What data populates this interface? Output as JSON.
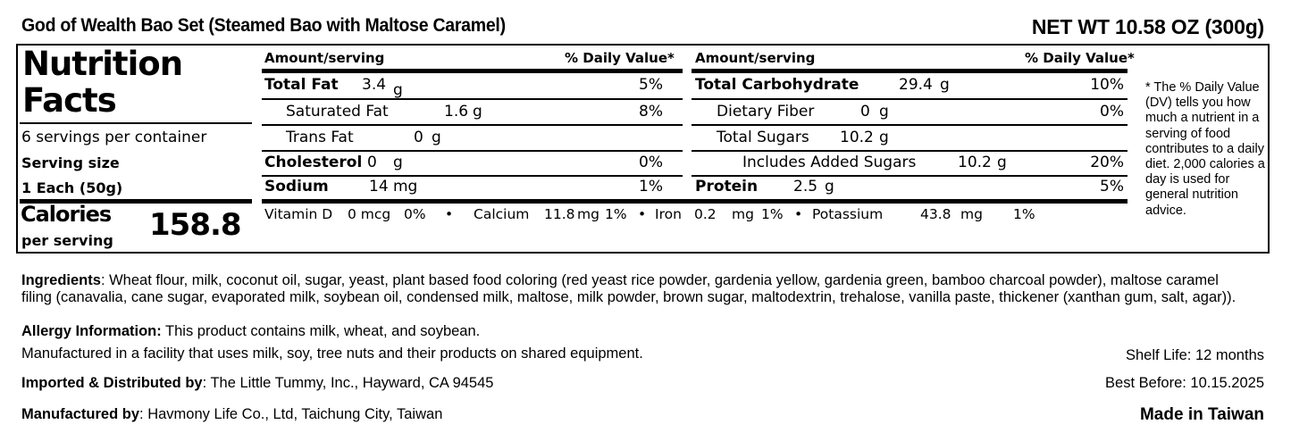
{
  "product_title": "God of Wealth Bao Set (Steamed Bao with Maltose Caramel)",
  "net_weight": "NET WT 10.58 OZ (300g)",
  "nutrition": {
    "title_line1": "Nutrition",
    "title_line2": "Facts",
    "servings_per_container": "6 servings per container",
    "serving_size_label": "Serving size",
    "serving_size_value": "1 Each (50g)",
    "calories_label": "Calories",
    "per_serving_label": "per serving",
    "calories_value": "158.8",
    "amount_header": "Amount/serving",
    "dv_header": "% Daily Value*",
    "total_fat": {
      "label": "Total Fat",
      "value": "3.4",
      "unit": "g",
      "dv": "5%"
    },
    "saturated_fat": {
      "label": "Saturated Fat",
      "value": "1.6",
      "unit": "g",
      "dv": "8%"
    },
    "trans_fat": {
      "label": "Trans Fat",
      "value": "0",
      "unit": "g"
    },
    "cholesterol": {
      "label": "Cholesterol",
      "value": "0",
      "unit": "g",
      "dv": "0%"
    },
    "sodium": {
      "label": "Sodium",
      "value": "14",
      "unit": "mg",
      "dv": "1%"
    },
    "total_carbohydrate": {
      "label": "Total Carbohydrate",
      "value": "29.4",
      "unit": "g",
      "dv": "10%"
    },
    "dietary_fiber": {
      "label": "Dietary Fiber",
      "value": "0",
      "unit": "g",
      "dv": "0%"
    },
    "total_sugars": {
      "label": "Total Sugars",
      "value": "10.2",
      "unit": "g"
    },
    "added_sugars": {
      "label": "Includes Added Sugars",
      "value": "10.2",
      "unit": "g",
      "dv": "20%"
    },
    "protein": {
      "label": "Protein",
      "value": "2.5",
      "unit": "g",
      "dv": "5%"
    },
    "vitamins": {
      "vitamin_d": {
        "label": "Vitamin D",
        "value": "0 mcg",
        "dv": "0%"
      },
      "calcium": {
        "label": "Calcium",
        "value": "11.8",
        "unit": "mg",
        "dv": "1%"
      },
      "iron": {
        "label": "Iron",
        "value": "0.2",
        "unit": "mg",
        "dv": "1%"
      },
      "potassium": {
        "label": "Potassium",
        "value": "43.8",
        "unit": "mg",
        "dv": "1%"
      },
      "separator": "•"
    },
    "dv_footnote": "* The % Daily Value (DV) tells you how much a nutrient in a serving of food contributes to a daily diet. 2,000 calories a day is used for general nutrition advice."
  },
  "ingredients": {
    "label": "Ingredients",
    "line1": ": Wheat flour, milk, coconut oil, sugar, yeast, plant based food coloring (red yeast rice powder,  gardenia yellow, gardenia green, bamboo charcoal powder), maltose caramel",
    "line2": "filing (canavalia, cane sugar, evaporated milk, soybean oil, condensed milk, maltose, milk powder, brown sugar, maltodextrin, trehalose, vanilla paste, thickener (xanthan gum, salt, agar))."
  },
  "allergy": {
    "label": "Allergy Information:",
    "text": " This product contains milk, wheat, and soybean.",
    "facility": "Manufactured in a facility that uses milk, soy, tree nuts and their products on shared equipment."
  },
  "importer": {
    "label": "Imported & Distributed by",
    "text": ": The Little Tummy, Inc., Hayward, CA 94545"
  },
  "manufacturer": {
    "label": "Manufactured by",
    "text": ": Havmony Life Co., Ltd, Taichung City, Taiwan"
  },
  "shelf_life": "Shelf Life: 12 months",
  "best_before": "Best Before: 10.15.2025",
  "made_in": "Made in Taiwan"
}
